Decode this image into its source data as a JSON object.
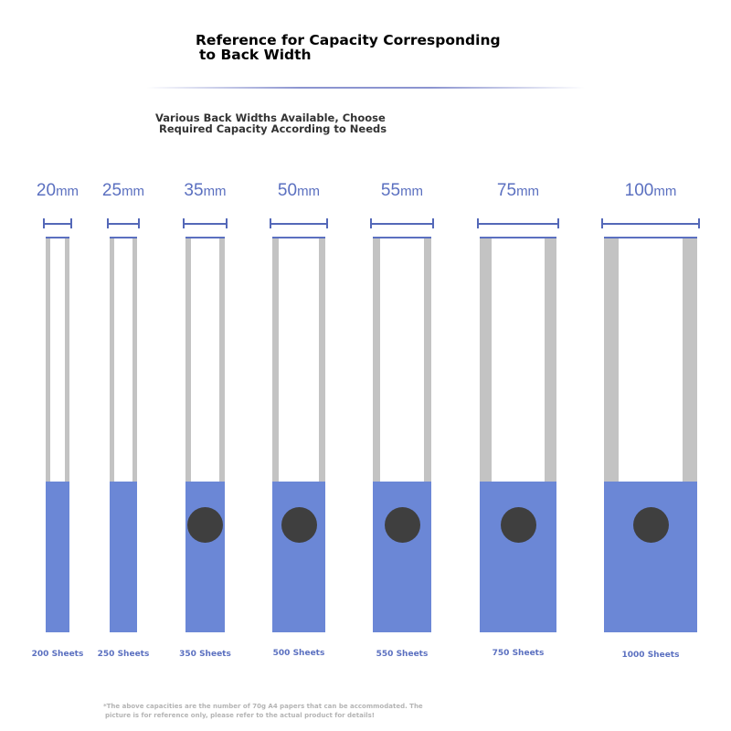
{
  "header": {
    "title_line1": "Reference for Capacity Corresponding",
    "title_line2": "to Back Width",
    "subtitle_line1": "Various Back Widths Available, Choose",
    "subtitle_line2": "Required Capacity According to Needs"
  },
  "binders": [
    {
      "width": "20",
      "unit": "mm",
      "sheets": "200 Sheets",
      "ring_hole": false
    },
    {
      "width": "25",
      "unit": "mm",
      "sheets": "250 Sheets",
      "ring_hole": false
    },
    {
      "width": "35",
      "unit": "mm",
      "sheets": "350 Sheets",
      "ring_hole": true
    },
    {
      "width": "50",
      "unit": "mm",
      "sheets": "500 Sheets",
      "ring_hole": true
    },
    {
      "width": "55",
      "unit": "mm",
      "sheets": "550 Sheets",
      "ring_hole": true
    },
    {
      "width": "75",
      "unit": "mm",
      "sheets": "750 Sheets",
      "ring_hole": true
    },
    {
      "width": "100",
      "unit": "mm",
      "sheets": "1000 Sheets",
      "ring_hole": true
    }
  ],
  "footnote": {
    "line1": "*The above capacities are the number of 70g A4 papers that can be accommodated. The",
    "line2": "picture is for reference only, please refer to the actual product for details!"
  },
  "colors": {
    "accent_blue": "#5b70c0",
    "capacity_fill": "#6b87d6",
    "spine_gray": "#c3c3c3",
    "ring_hole": "#3f3f3f"
  }
}
